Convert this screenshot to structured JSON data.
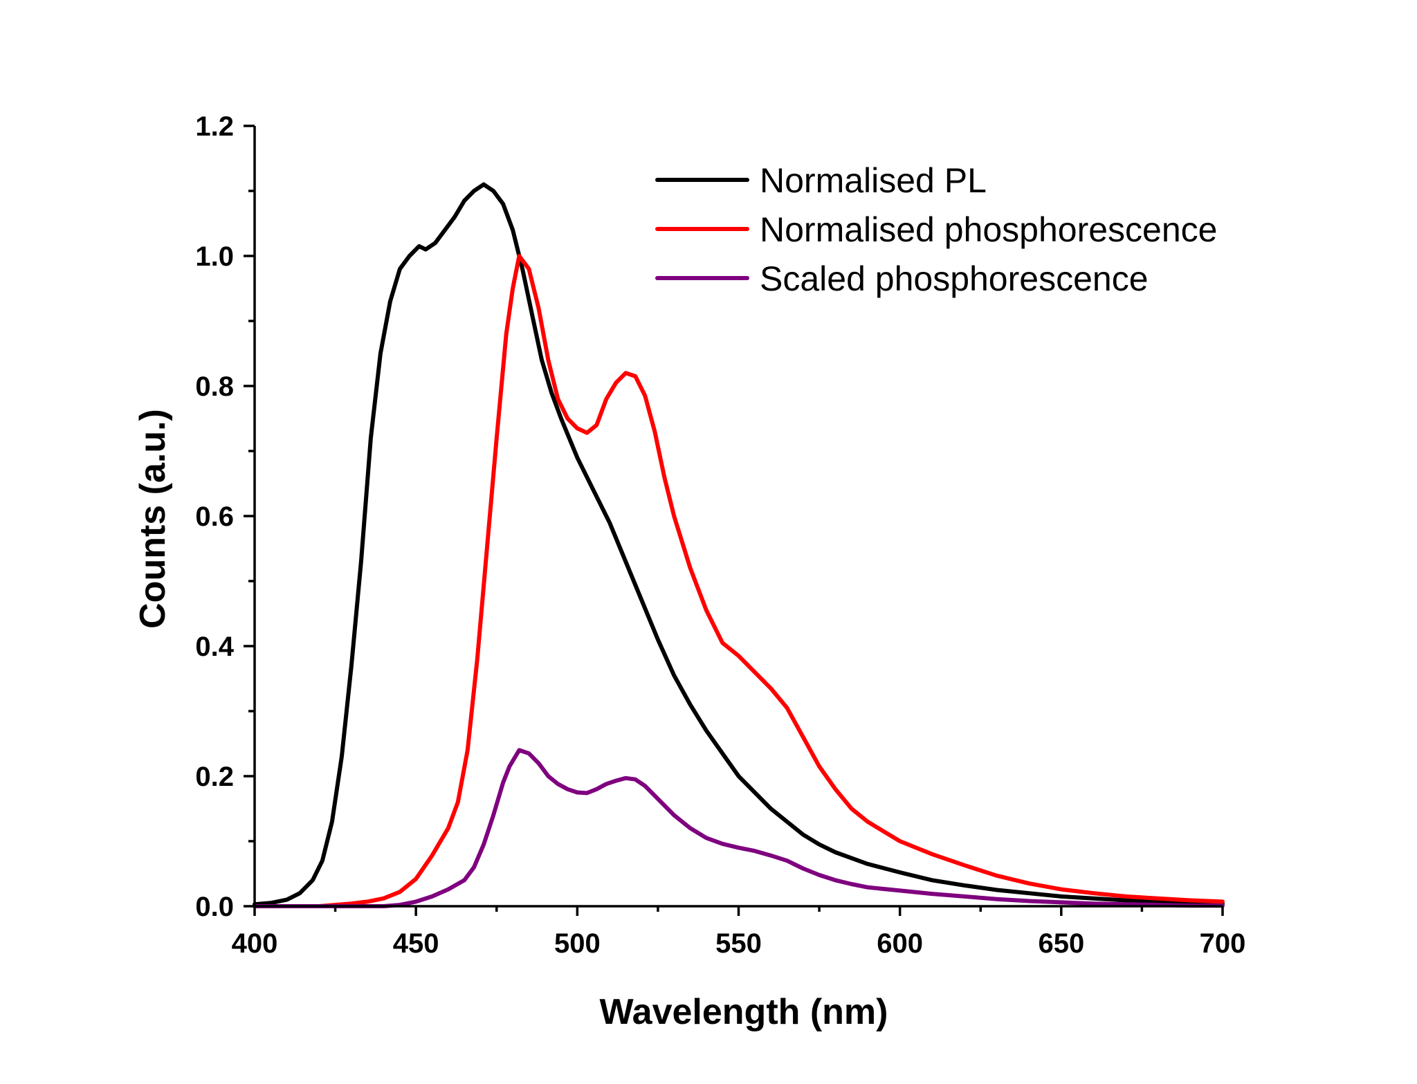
{
  "chart_data": {
    "type": "line",
    "xlabel": "Wavelength (nm)",
    "ylabel": "Counts (a.u.)",
    "xlim": [
      400,
      700
    ],
    "ylim": [
      0,
      1.2
    ],
    "xticks": [
      400,
      450,
      500,
      550,
      600,
      650,
      700
    ],
    "yticks": [
      0.0,
      0.2,
      0.4,
      0.6,
      0.8,
      1.0,
      1.2
    ],
    "xtick_labels": [
      "400",
      "450",
      "500",
      "550",
      "600",
      "650",
      "700"
    ],
    "ytick_labels": [
      "0.0",
      "0.2",
      "0.4",
      "0.6",
      "0.8",
      "1.0",
      "1.2"
    ],
    "grid": false,
    "legend_position": "top-right",
    "series": [
      {
        "name": "Normalised PL",
        "color": "#000000",
        "points": [
          [
            400,
            0.003
          ],
          [
            405,
            0.005
          ],
          [
            410,
            0.01
          ],
          [
            414,
            0.02
          ],
          [
            418,
            0.04
          ],
          [
            421,
            0.07
          ],
          [
            424,
            0.13
          ],
          [
            427,
            0.23
          ],
          [
            430,
            0.37
          ],
          [
            433,
            0.53
          ],
          [
            436,
            0.72
          ],
          [
            439,
            0.85
          ],
          [
            442,
            0.93
          ],
          [
            445,
            0.98
          ],
          [
            448,
            1.0
          ],
          [
            451,
            1.015
          ],
          [
            453,
            1.01
          ],
          [
            456,
            1.02
          ],
          [
            459,
            1.04
          ],
          [
            462,
            1.06
          ],
          [
            465,
            1.085
          ],
          [
            468,
            1.1
          ],
          [
            471,
            1.11
          ],
          [
            474,
            1.1
          ],
          [
            477,
            1.08
          ],
          [
            480,
            1.04
          ],
          [
            483,
            0.98
          ],
          [
            486,
            0.91
          ],
          [
            489,
            0.84
          ],
          [
            492,
            0.79
          ],
          [
            495,
            0.75
          ],
          [
            500,
            0.69
          ],
          [
            505,
            0.64
          ],
          [
            510,
            0.59
          ],
          [
            515,
            0.53
          ],
          [
            520,
            0.47
          ],
          [
            525,
            0.41
          ],
          [
            530,
            0.355
          ],
          [
            535,
            0.31
          ],
          [
            540,
            0.27
          ],
          [
            545,
            0.235
          ],
          [
            550,
            0.2
          ],
          [
            555,
            0.175
          ],
          [
            560,
            0.15
          ],
          [
            565,
            0.13
          ],
          [
            570,
            0.11
          ],
          [
            575,
            0.095
          ],
          [
            580,
            0.083
          ],
          [
            590,
            0.065
          ],
          [
            600,
            0.052
          ],
          [
            610,
            0.04
          ],
          [
            620,
            0.032
          ],
          [
            630,
            0.025
          ],
          [
            640,
            0.02
          ],
          [
            650,
            0.015
          ],
          [
            660,
            0.012
          ],
          [
            670,
            0.009
          ],
          [
            680,
            0.007
          ],
          [
            690,
            0.005
          ],
          [
            700,
            0.004
          ]
        ]
      },
      {
        "name": "Normalised phosphorescence",
        "color": "#ff0000",
        "points": [
          [
            400,
            0.0
          ],
          [
            420,
            0.0
          ],
          [
            430,
            0.004
          ],
          [
            435,
            0.007
          ],
          [
            440,
            0.012
          ],
          [
            445,
            0.022
          ],
          [
            450,
            0.042
          ],
          [
            455,
            0.078
          ],
          [
            460,
            0.12
          ],
          [
            463,
            0.16
          ],
          [
            466,
            0.24
          ],
          [
            469,
            0.38
          ],
          [
            472,
            0.55
          ],
          [
            475,
            0.72
          ],
          [
            478,
            0.88
          ],
          [
            480,
            0.95
          ],
          [
            482,
            1.0
          ],
          [
            485,
            0.98
          ],
          [
            488,
            0.92
          ],
          [
            491,
            0.84
          ],
          [
            494,
            0.78
          ],
          [
            497,
            0.75
          ],
          [
            500,
            0.735
          ],
          [
            503,
            0.728
          ],
          [
            506,
            0.74
          ],
          [
            509,
            0.78
          ],
          [
            512,
            0.805
          ],
          [
            515,
            0.82
          ],
          [
            518,
            0.815
          ],
          [
            521,
            0.785
          ],
          [
            524,
            0.73
          ],
          [
            527,
            0.66
          ],
          [
            530,
            0.6
          ],
          [
            535,
            0.52
          ],
          [
            540,
            0.455
          ],
          [
            545,
            0.405
          ],
          [
            550,
            0.385
          ],
          [
            555,
            0.36
          ],
          [
            560,
            0.335
          ],
          [
            565,
            0.305
          ],
          [
            570,
            0.26
          ],
          [
            575,
            0.215
          ],
          [
            580,
            0.18
          ],
          [
            585,
            0.15
          ],
          [
            590,
            0.13
          ],
          [
            595,
            0.115
          ],
          [
            600,
            0.1
          ],
          [
            610,
            0.08
          ],
          [
            620,
            0.063
          ],
          [
            630,
            0.047
          ],
          [
            640,
            0.035
          ],
          [
            650,
            0.026
          ],
          [
            660,
            0.02
          ],
          [
            670,
            0.015
          ],
          [
            680,
            0.012
          ],
          [
            690,
            0.009
          ],
          [
            700,
            0.007
          ]
        ]
      },
      {
        "name": "Scaled phosphorescence",
        "color": "#7f007f",
        "points": [
          [
            400,
            0.0
          ],
          [
            440,
            0.0
          ],
          [
            445,
            0.002
          ],
          [
            450,
            0.007
          ],
          [
            455,
            0.015
          ],
          [
            460,
            0.026
          ],
          [
            465,
            0.04
          ],
          [
            468,
            0.06
          ],
          [
            471,
            0.095
          ],
          [
            474,
            0.14
          ],
          [
            477,
            0.19
          ],
          [
            479,
            0.215
          ],
          [
            482,
            0.24
          ],
          [
            485,
            0.235
          ],
          [
            488,
            0.22
          ],
          [
            491,
            0.2
          ],
          [
            494,
            0.188
          ],
          [
            497,
            0.18
          ],
          [
            500,
            0.175
          ],
          [
            503,
            0.174
          ],
          [
            506,
            0.18
          ],
          [
            509,
            0.188
          ],
          [
            512,
            0.193
          ],
          [
            515,
            0.197
          ],
          [
            518,
            0.195
          ],
          [
            521,
            0.185
          ],
          [
            525,
            0.165
          ],
          [
            530,
            0.14
          ],
          [
            535,
            0.12
          ],
          [
            540,
            0.105
          ],
          [
            545,
            0.096
          ],
          [
            550,
            0.09
          ],
          [
            555,
            0.085
          ],
          [
            560,
            0.078
          ],
          [
            565,
            0.07
          ],
          [
            570,
            0.058
          ],
          [
            575,
            0.048
          ],
          [
            580,
            0.04
          ],
          [
            585,
            0.034
          ],
          [
            590,
            0.029
          ],
          [
            600,
            0.024
          ],
          [
            610,
            0.019
          ],
          [
            620,
            0.015
          ],
          [
            630,
            0.011
          ],
          [
            640,
            0.008
          ],
          [
            650,
            0.006
          ],
          [
            660,
            0.004
          ],
          [
            670,
            0.003
          ],
          [
            680,
            0.002
          ],
          [
            690,
            0.001
          ],
          [
            700,
            0.001
          ]
        ]
      }
    ]
  }
}
